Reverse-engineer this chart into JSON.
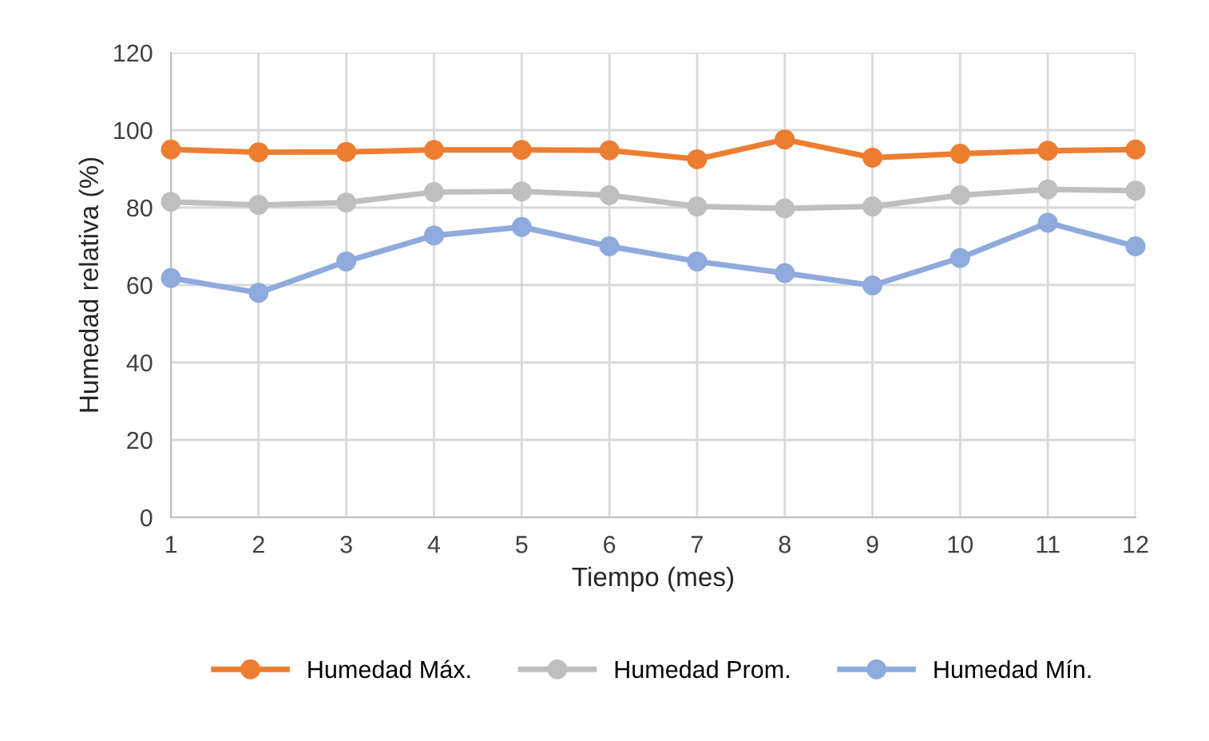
{
  "chart_data": {
    "type": "line",
    "xlabel": "Tiempo (mes)",
    "ylabel": "Humedad relativa (%)",
    "x": [
      1,
      2,
      3,
      4,
      5,
      6,
      7,
      8,
      9,
      10,
      11,
      12
    ],
    "series": [
      {
        "name": "Humedad Máx.",
        "color": "#ed7d31",
        "values": [
          95,
          94.3,
          94.4,
          94.9,
          94.9,
          94.8,
          92.5,
          97.6,
          92.9,
          93.9,
          94.7,
          95
        ]
      },
      {
        "name": "Humedad Prom.",
        "color": "#bfbfbf",
        "values": [
          81.5,
          80.7,
          81.3,
          84,
          84.2,
          83.2,
          80.3,
          79.8,
          80.3,
          83.2,
          84.7,
          84.4
        ]
      },
      {
        "name": "Humedad Mín.",
        "color": "#8faadc",
        "values": [
          61.8,
          58,
          66.1,
          72.8,
          75,
          70,
          66.1,
          63.1,
          59.9,
          67,
          76.1,
          70
        ]
      }
    ],
    "xlim": [
      1,
      12
    ],
    "xticks": [
      1,
      2,
      3,
      4,
      5,
      6,
      7,
      8,
      9,
      10,
      11,
      12
    ],
    "ylim": [
      0,
      120
    ],
    "yticks": [
      0,
      20,
      40,
      60,
      80,
      100,
      120
    ],
    "grid": true,
    "legend": "bottom",
    "marker": "circle",
    "line_style": "solid"
  }
}
